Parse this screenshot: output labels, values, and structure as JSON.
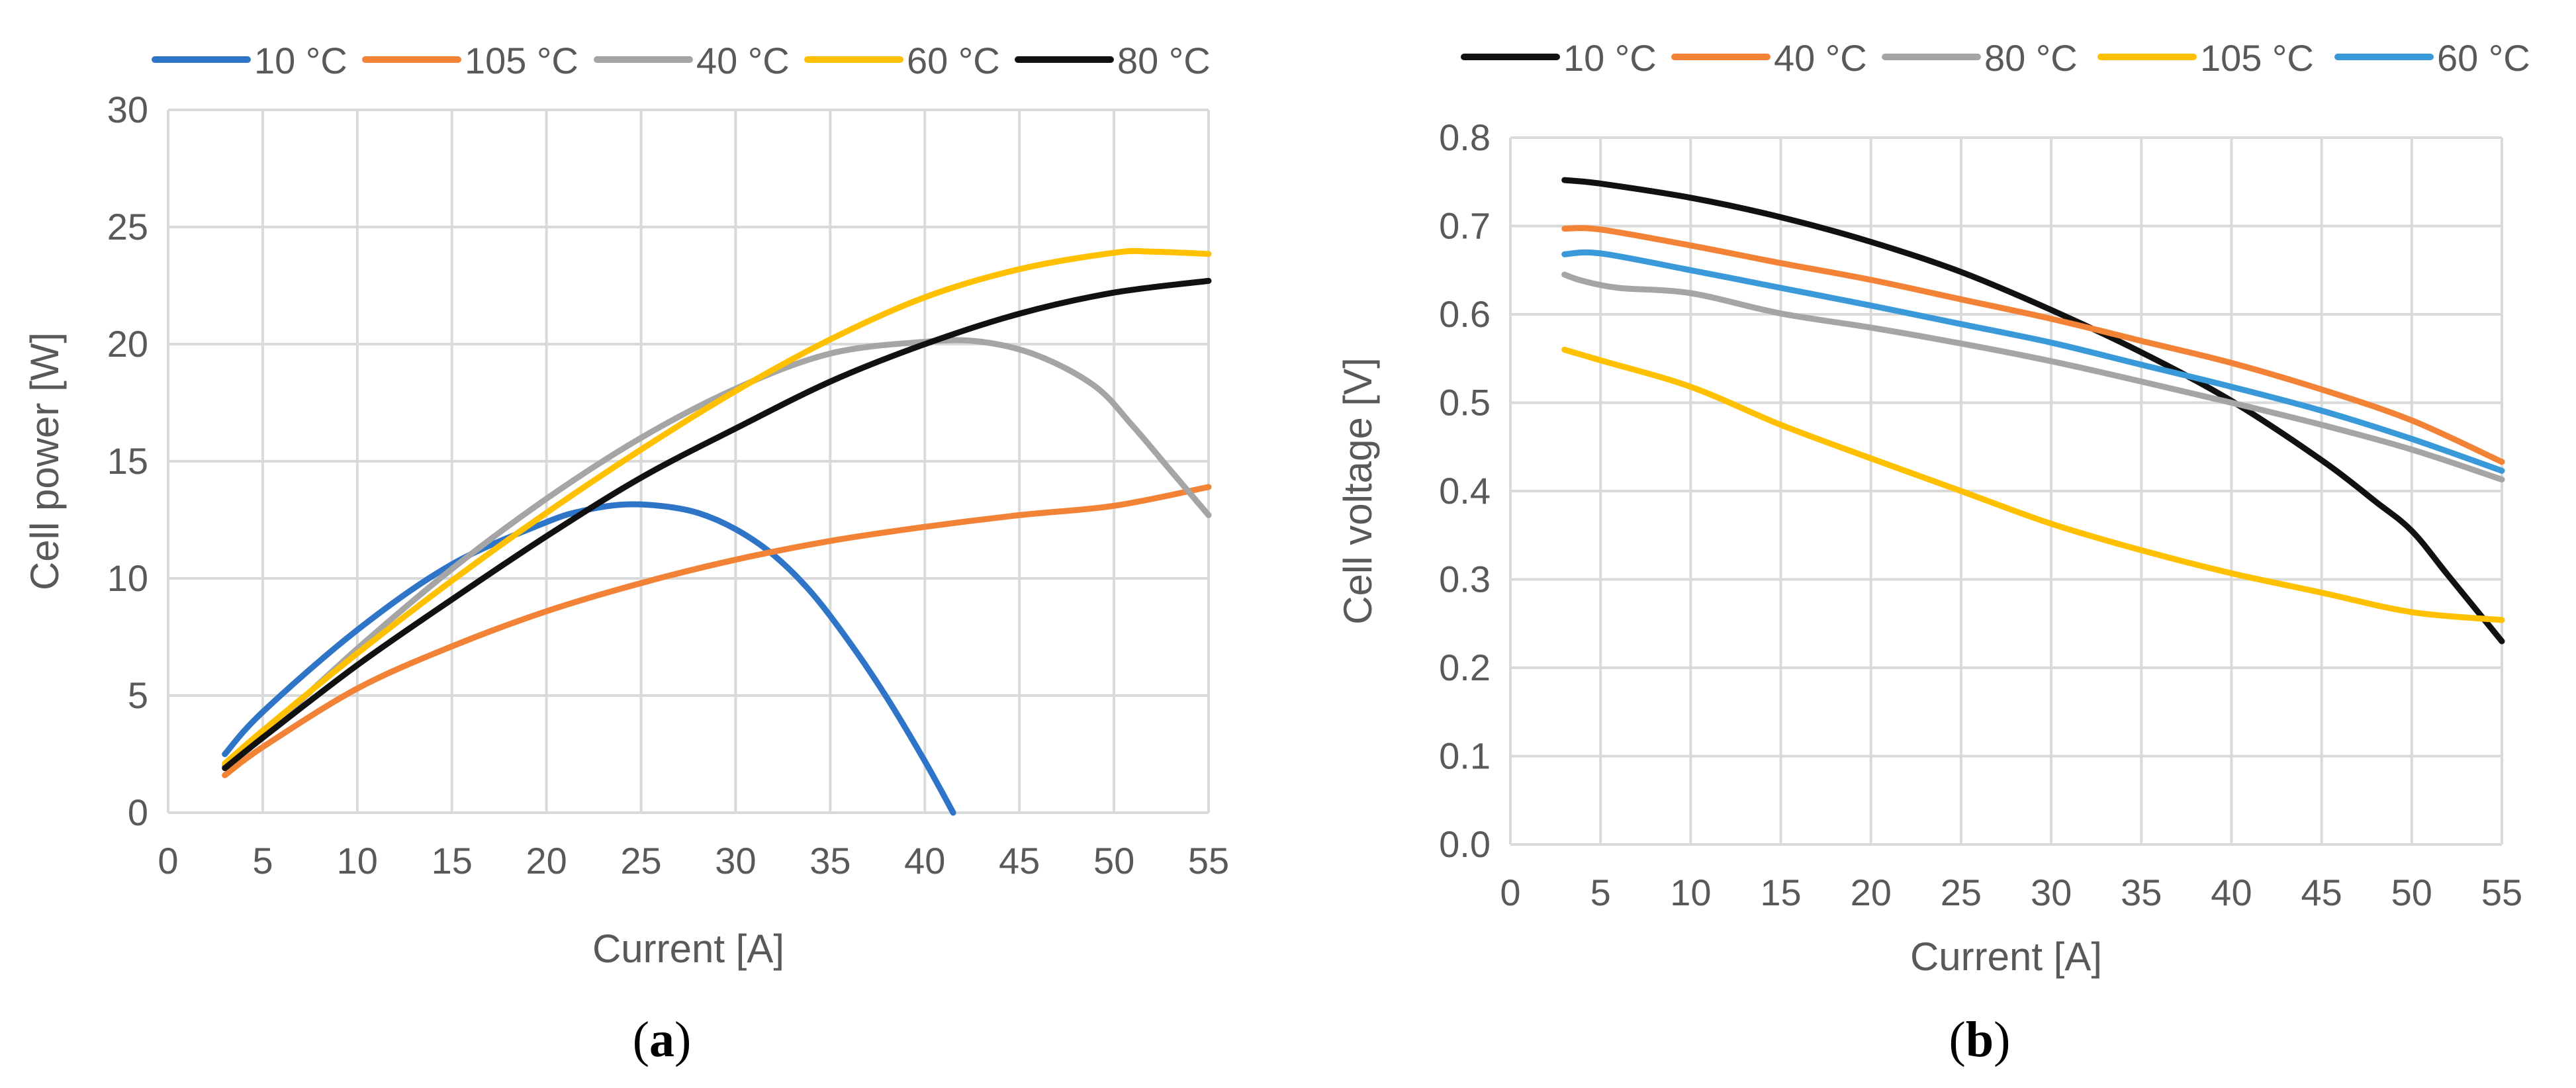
{
  "colors": {
    "blue": "#2e75c8",
    "orange": "#f28236",
    "gray": "#a5a5a5",
    "yellow": "#ffc000",
    "black": "#111111",
    "lightblue": "#3a9ad9",
    "grid": "#d9d9d9",
    "text": "#595959"
  },
  "chart_data": [
    {
      "id": "a",
      "type": "line",
      "panel_label": "a",
      "title": "",
      "xlabel": "Current [A]",
      "ylabel": "Cell power [W]",
      "xlim": [
        0,
        55
      ],
      "ylim": [
        0,
        30
      ],
      "xticks": [
        0,
        5,
        10,
        15,
        20,
        25,
        30,
        35,
        40,
        45,
        50,
        55
      ],
      "yticks": [
        0,
        5,
        10,
        15,
        20,
        25,
        30
      ],
      "grid": true,
      "legend_position": "top",
      "series": [
        {
          "name": "10 °C",
          "color": "#2e75c8",
          "x": [
            3,
            5,
            10,
            15,
            20,
            22,
            24,
            26,
            28,
            30,
            32,
            34,
            36,
            38,
            40,
            41.5
          ],
          "y": [
            2.5,
            4.3,
            7.8,
            10.6,
            12.4,
            12.9,
            13.15,
            13.1,
            12.8,
            12.1,
            11.0,
            9.4,
            7.3,
            4.9,
            2.2,
            0
          ]
        },
        {
          "name": "105 °C",
          "color": "#f28236",
          "x": [
            3,
            5,
            10,
            15,
            20,
            25,
            30,
            35,
            40,
            45,
            50,
            55
          ],
          "y": [
            1.6,
            2.8,
            5.3,
            7.1,
            8.6,
            9.8,
            10.8,
            11.6,
            12.2,
            12.7,
            13.1,
            13.9
          ]
        },
        {
          "name": "40 °C",
          "color": "#a5a5a5",
          "x": [
            3,
            5,
            10,
            15,
            20,
            25,
            30,
            35,
            40,
            43,
            46,
            49,
            51,
            53,
            55
          ],
          "y": [
            2.0,
            3.3,
            7.0,
            10.4,
            13.4,
            16.0,
            18.1,
            19.6,
            20.1,
            20.1,
            19.5,
            18.2,
            16.5,
            14.6,
            12.7
          ]
        },
        {
          "name": "60 °C",
          "color": "#ffc000",
          "x": [
            3,
            5,
            10,
            15,
            20,
            25,
            30,
            35,
            40,
            45,
            50,
            52,
            55
          ],
          "y": [
            2.1,
            3.5,
            6.8,
            9.9,
            12.8,
            15.5,
            18.0,
            20.2,
            22.0,
            23.2,
            23.9,
            23.95,
            23.85
          ]
        },
        {
          "name": "80 °C",
          "color": "#111111",
          "x": [
            3,
            5,
            10,
            15,
            20,
            25,
            30,
            35,
            40,
            45,
            50,
            55
          ],
          "y": [
            1.9,
            3.2,
            6.3,
            9.1,
            11.8,
            14.3,
            16.4,
            18.4,
            20.0,
            21.3,
            22.2,
            22.7
          ]
        }
      ]
    },
    {
      "id": "b",
      "type": "line",
      "panel_label": "b",
      "title": "",
      "xlabel": "Current [A]",
      "ylabel": "Cell voltage [V]",
      "xlim": [
        0,
        55
      ],
      "ylim": [
        0,
        0.8
      ],
      "xticks": [
        0,
        5,
        10,
        15,
        20,
        25,
        30,
        35,
        40,
        45,
        50,
        55
      ],
      "yticks": [
        0,
        0.1,
        0.2,
        0.3,
        0.4,
        0.5,
        0.6,
        0.7,
        0.8
      ],
      "grid": true,
      "legend_position": "top",
      "series": [
        {
          "name": "10 °C",
          "color": "#111111",
          "x": [
            3,
            5,
            10,
            15,
            20,
            25,
            30,
            35,
            40,
            45,
            48,
            50,
            52,
            55
          ],
          "y": [
            0.752,
            0.748,
            0.732,
            0.71,
            0.682,
            0.648,
            0.605,
            0.557,
            0.502,
            0.435,
            0.388,
            0.355,
            0.305,
            0.23
          ]
        },
        {
          "name": "40 °C",
          "color": "#f28236",
          "x": [
            3,
            5,
            10,
            15,
            20,
            25,
            30,
            35,
            40,
            45,
            50,
            55
          ],
          "y": [
            0.697,
            0.696,
            0.678,
            0.658,
            0.639,
            0.617,
            0.595,
            0.57,
            0.545,
            0.515,
            0.48,
            0.433
          ]
        },
        {
          "name": "80 °C",
          "color": "#a5a5a5",
          "x": [
            3,
            4,
            6,
            10,
            15,
            20,
            25,
            30,
            35,
            40,
            45,
            50,
            55
          ],
          "y": [
            0.645,
            0.638,
            0.63,
            0.624,
            0.601,
            0.585,
            0.567,
            0.547,
            0.524,
            0.5,
            0.475,
            0.447,
            0.413
          ]
        },
        {
          "name": "105 °C",
          "color": "#ffc000",
          "x": [
            3,
            5,
            10,
            15,
            20,
            25,
            30,
            35,
            40,
            45,
            50,
            55
          ],
          "y": [
            0.56,
            0.548,
            0.518,
            0.475,
            0.437,
            0.4,
            0.363,
            0.333,
            0.307,
            0.285,
            0.263,
            0.254
          ]
        },
        {
          "name": "60 °C",
          "color": "#3a9ad9",
          "x": [
            3,
            5,
            10,
            15,
            20,
            25,
            30,
            35,
            40,
            45,
            50,
            55
          ],
          "y": [
            0.668,
            0.669,
            0.65,
            0.63,
            0.61,
            0.589,
            0.568,
            0.543,
            0.518,
            0.491,
            0.459,
            0.423
          ]
        }
      ]
    }
  ]
}
